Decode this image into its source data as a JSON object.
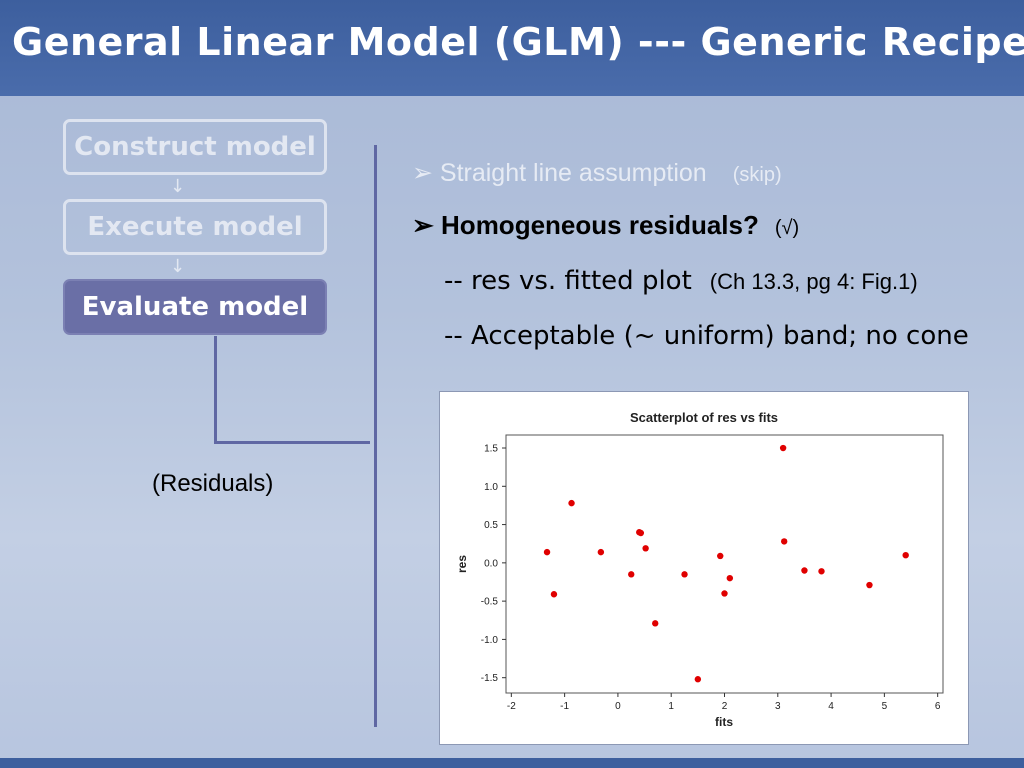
{
  "title": "General Linear Model (GLM) --- Generic Recipe",
  "flow": {
    "construct": "Construct model",
    "execute": "Execute model",
    "evaluate": "Evaluate model",
    "arrow": "↓"
  },
  "residuals_label": "(Residuals)",
  "bullets": {
    "marker": "➢",
    "b1_text": "Straight line assumption",
    "b1_note": "(skip)",
    "b2_text": "Homogeneous residuals?",
    "b2_check": "(√)",
    "sub1_text": "-- res vs. fitted plot",
    "sub1_ref": "(Ch 13.3, pg 4: Fig.1)",
    "sub2_text": "-- Acceptable (~ uniform) band; no cone"
  },
  "colors": {
    "point": "#e00000",
    "accent": "#5f67a3",
    "active_box": "#6a6fa6"
  },
  "chart_data": {
    "type": "scatter",
    "title": "Scatterplot of res vs fits",
    "xlabel": "fits",
    "ylabel": "res",
    "xlim": [
      -2.1,
      6.1
    ],
    "ylim": [
      -1.7,
      1.67
    ],
    "xticks": [
      -2,
      -1,
      0,
      1,
      2,
      3,
      4,
      5,
      6
    ],
    "yticks": [
      -1.5,
      -1.0,
      -0.5,
      0.0,
      0.5,
      1.0,
      1.5
    ],
    "ytick_labels": [
      "-1.5",
      "-1.0",
      "-0.5",
      "0.0",
      "0.5",
      "1.0",
      "1.5"
    ],
    "grid": false,
    "points": [
      [
        -1.33,
        0.14
      ],
      [
        -1.2,
        -0.41
      ],
      [
        -0.87,
        0.78
      ],
      [
        -0.32,
        0.14
      ],
      [
        0.25,
        -0.15
      ],
      [
        0.4,
        0.4
      ],
      [
        0.43,
        0.39
      ],
      [
        0.52,
        0.19
      ],
      [
        0.7,
        -0.79
      ],
      [
        1.25,
        -0.15
      ],
      [
        1.5,
        -1.52
      ],
      [
        1.92,
        0.09
      ],
      [
        2.0,
        -0.4
      ],
      [
        2.1,
        -0.2
      ],
      [
        3.1,
        1.5
      ],
      [
        3.12,
        0.28
      ],
      [
        3.5,
        -0.1
      ],
      [
        3.82,
        -0.11
      ],
      [
        4.72,
        -0.29
      ],
      [
        5.4,
        0.1
      ]
    ]
  }
}
